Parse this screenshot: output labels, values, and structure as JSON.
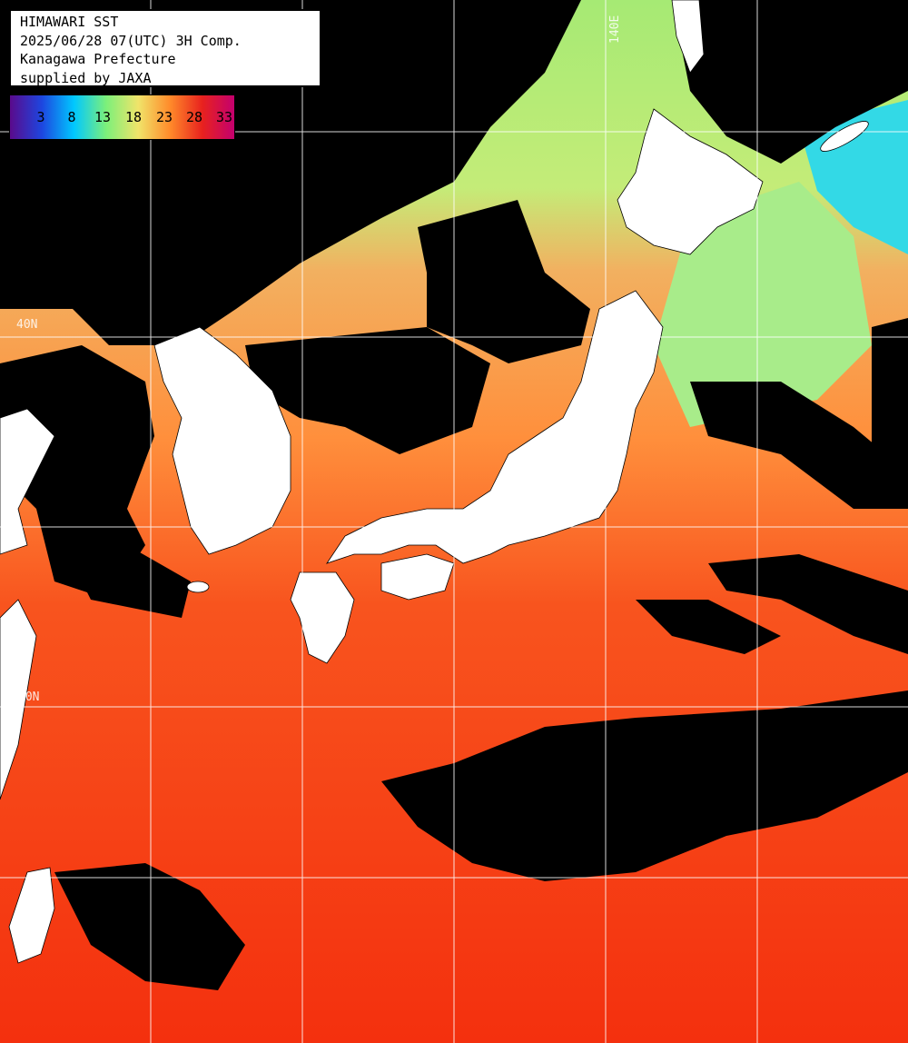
{
  "header": {
    "line1": "HIMAWARI SST",
    "line2": "2025/06/28 07(UTC) 3H Comp.",
    "line3": "Kanagawa Prefecture",
    "line4": "supplied by JAXA"
  },
  "legend": {
    "ticks": [
      "3",
      "8",
      "13",
      "18",
      "23",
      "28",
      "33"
    ],
    "colors": [
      "#5a0a8c",
      "#1d46e0",
      "#00c8ff",
      "#7cf07a",
      "#f0e46a",
      "#ff8a2a",
      "#e8221e",
      "#c4006e"
    ]
  },
  "grid_labels": {
    "lon": "140E",
    "lat_top": "40N",
    "lat_mid": "30N"
  },
  "colors": {
    "land": "#ffffff",
    "cloud_nodata": "#000000",
    "sst_cold": "#00d2ff",
    "sst_cool": "#a0f06a",
    "sst_mild": "#f0c86a",
    "sst_warm": "#ff8c32",
    "sst_hot": "#f42a10",
    "grid": "#ffffff"
  }
}
